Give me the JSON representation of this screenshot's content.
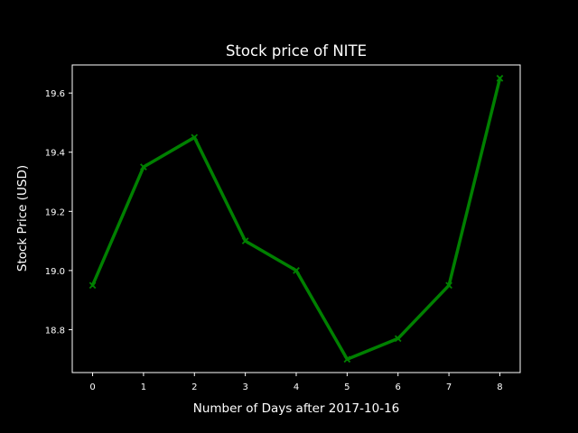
{
  "chart_data": {
    "type": "line",
    "title": "Stock price of NITE",
    "xlabel": "Number of Days after 2017-10-16",
    "ylabel": "Stock Price (USD)",
    "x": [
      0,
      1,
      2,
      3,
      4,
      5,
      6,
      7,
      8
    ],
    "series": [
      {
        "values": [
          18.95,
          19.35,
          19.45,
          19.1,
          19.0,
          18.7,
          18.77,
          18.95,
          19.65
        ],
        "color": "#008000",
        "marker": "x"
      }
    ],
    "xlim": [
      -0.4,
      8.4
    ],
    "ylim": [
      18.655,
      19.695
    ],
    "xticks": [
      "0",
      "1",
      "2",
      "3",
      "4",
      "5",
      "6",
      "7",
      "8"
    ],
    "yticks": [
      "18.8",
      "19.0",
      "19.2",
      "19.4",
      "19.6"
    ],
    "grid": false,
    "colors": {
      "background": "#000000",
      "foreground": "#ffffff",
      "line": "#008000"
    }
  }
}
